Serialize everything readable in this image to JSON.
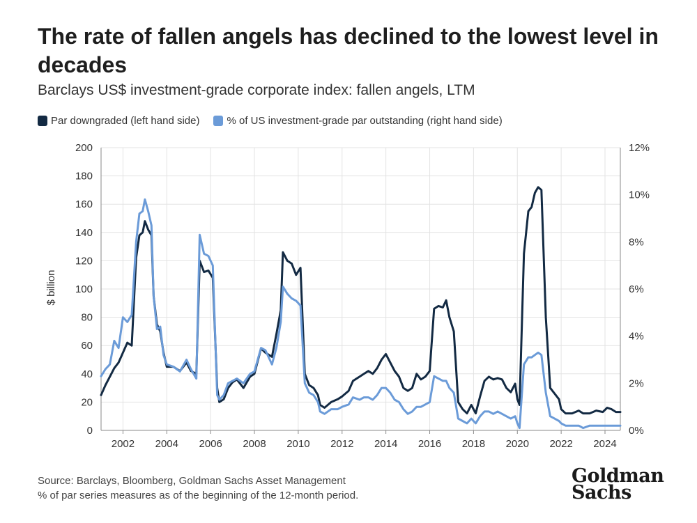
{
  "header": {
    "title": "The rate of fallen angels has declined to the lowest level in decades",
    "subtitle": "Barclays US$ investment-grade corporate index: fallen angels, LTM"
  },
  "footer": {
    "source": "Source: Barclays, Bloomberg, Goldman Sachs Asset Management",
    "note": "% of par series measures as of the beginning of the 12-month period.",
    "logo_line1": "Goldman",
    "logo_line2": "Sachs"
  },
  "colors": {
    "primary": "#132a43",
    "secondary": "#6b9bd8",
    "grid": "#e3e3e3",
    "axis": "#8a8a8a"
  },
  "chart_data": {
    "type": "line",
    "title": "The rate of fallen angels has declined to the lowest level in decades",
    "subtitle": "Barclays US$ investment-grade corporate index: fallen angels, LTM",
    "xlabel": "",
    "ylabel": "$ billion",
    "xlim": [
      2001.0,
      2024.7
    ],
    "ylim": [
      0,
      200
    ],
    "y2lim": [
      0,
      12
    ],
    "x_ticks": [
      2002,
      2004,
      2006,
      2008,
      2010,
      2012,
      2014,
      2016,
      2018,
      2020,
      2022,
      2024
    ],
    "y_ticks": [
      0,
      20,
      40,
      60,
      80,
      100,
      120,
      140,
      160,
      180,
      200
    ],
    "y2_ticks": [
      "0%",
      "2%",
      "4%",
      "6%",
      "8%",
      "10%",
      "12%"
    ],
    "grid": true,
    "legend_position": "top-left",
    "series": [
      {
        "name": "Par downgraded (left hand side)",
        "axis": "left",
        "unit": "$ billion",
        "points": [
          [
            2001.0,
            25
          ],
          [
            2001.2,
            32
          ],
          [
            2001.4,
            38
          ],
          [
            2001.6,
            44
          ],
          [
            2001.8,
            48
          ],
          [
            2002.0,
            55
          ],
          [
            2002.2,
            62
          ],
          [
            2002.4,
            60
          ],
          [
            2002.6,
            122
          ],
          [
            2002.75,
            138
          ],
          [
            2002.9,
            140
          ],
          [
            2003.0,
            148
          ],
          [
            2003.15,
            142
          ],
          [
            2003.3,
            138
          ],
          [
            2003.4,
            95
          ],
          [
            2003.55,
            75
          ],
          [
            2003.7,
            70
          ],
          [
            2003.85,
            55
          ],
          [
            2004.0,
            45
          ],
          [
            2004.3,
            45
          ],
          [
            2004.6,
            42
          ],
          [
            2004.9,
            48
          ],
          [
            2005.1,
            42
          ],
          [
            2005.35,
            40
          ],
          [
            2005.5,
            120
          ],
          [
            2005.7,
            112
          ],
          [
            2005.9,
            113
          ],
          [
            2006.1,
            108
          ],
          [
            2006.3,
            30
          ],
          [
            2006.4,
            20
          ],
          [
            2006.6,
            22
          ],
          [
            2006.8,
            30
          ],
          [
            2007.0,
            34
          ],
          [
            2007.2,
            36
          ],
          [
            2007.5,
            30
          ],
          [
            2007.8,
            38
          ],
          [
            2008.0,
            40
          ],
          [
            2008.3,
            58
          ],
          [
            2008.5,
            55
          ],
          [
            2008.8,
            52
          ],
          [
            2009.0,
            68
          ],
          [
            2009.2,
            85
          ],
          [
            2009.3,
            126
          ],
          [
            2009.5,
            120
          ],
          [
            2009.7,
            118
          ],
          [
            2009.9,
            110
          ],
          [
            2010.1,
            115
          ],
          [
            2010.3,
            40
          ],
          [
            2010.5,
            32
          ],
          [
            2010.7,
            30
          ],
          [
            2010.9,
            25
          ],
          [
            2011.0,
            18
          ],
          [
            2011.2,
            16
          ],
          [
            2011.5,
            20
          ],
          [
            2011.8,
            22
          ],
          [
            2012.0,
            24
          ],
          [
            2012.3,
            28
          ],
          [
            2012.5,
            35
          ],
          [
            2012.8,
            38
          ],
          [
            2013.0,
            40
          ],
          [
            2013.2,
            42
          ],
          [
            2013.4,
            40
          ],
          [
            2013.6,
            44
          ],
          [
            2013.8,
            50
          ],
          [
            2014.0,
            54
          ],
          [
            2014.2,
            48
          ],
          [
            2014.4,
            42
          ],
          [
            2014.6,
            38
          ],
          [
            2014.8,
            30
          ],
          [
            2015.0,
            28
          ],
          [
            2015.2,
            30
          ],
          [
            2015.4,
            40
          ],
          [
            2015.6,
            36
          ],
          [
            2015.8,
            38
          ],
          [
            2016.0,
            42
          ],
          [
            2016.2,
            86
          ],
          [
            2016.4,
            88
          ],
          [
            2016.6,
            87
          ],
          [
            2016.75,
            92
          ],
          [
            2016.9,
            80
          ],
          [
            2017.1,
            70
          ],
          [
            2017.3,
            20
          ],
          [
            2017.5,
            15
          ],
          [
            2017.7,
            12
          ],
          [
            2017.9,
            18
          ],
          [
            2018.1,
            12
          ],
          [
            2018.3,
            24
          ],
          [
            2018.5,
            35
          ],
          [
            2018.7,
            38
          ],
          [
            2018.9,
            36
          ],
          [
            2019.1,
            37
          ],
          [
            2019.3,
            36
          ],
          [
            2019.5,
            30
          ],
          [
            2019.7,
            27
          ],
          [
            2019.9,
            33
          ],
          [
            2020.0,
            22
          ],
          [
            2020.1,
            18
          ],
          [
            2020.3,
            125
          ],
          [
            2020.5,
            155
          ],
          [
            2020.65,
            158
          ],
          [
            2020.8,
            168
          ],
          [
            2020.95,
            172
          ],
          [
            2021.1,
            170
          ],
          [
            2021.3,
            80
          ],
          [
            2021.5,
            30
          ],
          [
            2021.7,
            26
          ],
          [
            2021.9,
            22
          ],
          [
            2022.0,
            15
          ],
          [
            2022.2,
            12
          ],
          [
            2022.5,
            12
          ],
          [
            2022.8,
            14
          ],
          [
            2023.0,
            12
          ],
          [
            2023.3,
            12
          ],
          [
            2023.6,
            14
          ],
          [
            2023.9,
            13
          ],
          [
            2024.1,
            16
          ],
          [
            2024.3,
            15
          ],
          [
            2024.5,
            13
          ],
          [
            2024.7,
            13
          ]
        ]
      },
      {
        "name": "% of US investment-grade par outstanding (right hand side)",
        "axis": "right",
        "unit": "%",
        "points": [
          [
            2001.0,
            2.3
          ],
          [
            2001.2,
            2.6
          ],
          [
            2001.4,
            2.8
          ],
          [
            2001.6,
            3.8
          ],
          [
            2001.8,
            3.5
          ],
          [
            2002.0,
            4.8
          ],
          [
            2002.2,
            4.6
          ],
          [
            2002.4,
            4.9
          ],
          [
            2002.6,
            8.0
          ],
          [
            2002.75,
            9.2
          ],
          [
            2002.9,
            9.3
          ],
          [
            2003.0,
            9.8
          ],
          [
            2003.15,
            9.3
          ],
          [
            2003.3,
            8.7
          ],
          [
            2003.4,
            5.7
          ],
          [
            2003.55,
            4.3
          ],
          [
            2003.7,
            4.4
          ],
          [
            2003.85,
            3.2
          ],
          [
            2004.0,
            2.8
          ],
          [
            2004.3,
            2.7
          ],
          [
            2004.6,
            2.5
          ],
          [
            2004.9,
            3.0
          ],
          [
            2005.1,
            2.6
          ],
          [
            2005.35,
            2.2
          ],
          [
            2005.5,
            8.3
          ],
          [
            2005.7,
            7.5
          ],
          [
            2005.9,
            7.4
          ],
          [
            2006.1,
            7.0
          ],
          [
            2006.3,
            1.5
          ],
          [
            2006.4,
            1.3
          ],
          [
            2006.6,
            1.5
          ],
          [
            2006.8,
            2.0
          ],
          [
            2007.0,
            2.1
          ],
          [
            2007.2,
            2.2
          ],
          [
            2007.5,
            2.0
          ],
          [
            2007.8,
            2.4
          ],
          [
            2008.0,
            2.5
          ],
          [
            2008.3,
            3.5
          ],
          [
            2008.5,
            3.4
          ],
          [
            2008.8,
            2.8
          ],
          [
            2009.0,
            3.5
          ],
          [
            2009.2,
            4.6
          ],
          [
            2009.3,
            6.1
          ],
          [
            2009.5,
            5.8
          ],
          [
            2009.7,
            5.6
          ],
          [
            2009.9,
            5.5
          ],
          [
            2010.1,
            5.3
          ],
          [
            2010.3,
            2.0
          ],
          [
            2010.5,
            1.6
          ],
          [
            2010.7,
            1.5
          ],
          [
            2010.9,
            1.2
          ],
          [
            2011.0,
            0.8
          ],
          [
            2011.2,
            0.7
          ],
          [
            2011.5,
            0.9
          ],
          [
            2011.8,
            0.9
          ],
          [
            2012.0,
            1.0
          ],
          [
            2012.3,
            1.1
          ],
          [
            2012.5,
            1.4
          ],
          [
            2012.8,
            1.3
          ],
          [
            2013.0,
            1.4
          ],
          [
            2013.2,
            1.4
          ],
          [
            2013.4,
            1.3
          ],
          [
            2013.6,
            1.5
          ],
          [
            2013.8,
            1.8
          ],
          [
            2014.0,
            1.8
          ],
          [
            2014.2,
            1.6
          ],
          [
            2014.4,
            1.3
          ],
          [
            2014.6,
            1.2
          ],
          [
            2014.8,
            0.9
          ],
          [
            2015.0,
            0.7
          ],
          [
            2015.2,
            0.8
          ],
          [
            2015.4,
            1.0
          ],
          [
            2015.6,
            1.0
          ],
          [
            2015.8,
            1.1
          ],
          [
            2016.0,
            1.2
          ],
          [
            2016.2,
            2.3
          ],
          [
            2016.4,
            2.2
          ],
          [
            2016.6,
            2.1
          ],
          [
            2016.75,
            2.1
          ],
          [
            2016.9,
            1.8
          ],
          [
            2017.1,
            1.6
          ],
          [
            2017.3,
            0.5
          ],
          [
            2017.5,
            0.4
          ],
          [
            2017.7,
            0.3
          ],
          [
            2017.9,
            0.5
          ],
          [
            2018.1,
            0.3
          ],
          [
            2018.3,
            0.6
          ],
          [
            2018.5,
            0.8
          ],
          [
            2018.7,
            0.8
          ],
          [
            2018.9,
            0.7
          ],
          [
            2019.1,
            0.8
          ],
          [
            2019.3,
            0.7
          ],
          [
            2019.5,
            0.6
          ],
          [
            2019.7,
            0.5
          ],
          [
            2019.9,
            0.6
          ],
          [
            2020.0,
            0.3
          ],
          [
            2020.1,
            0.1
          ],
          [
            2020.3,
            2.8
          ],
          [
            2020.5,
            3.1
          ],
          [
            2020.65,
            3.1
          ],
          [
            2020.8,
            3.2
          ],
          [
            2020.95,
            3.3
          ],
          [
            2021.1,
            3.2
          ],
          [
            2021.3,
            1.6
          ],
          [
            2021.5,
            0.6
          ],
          [
            2021.7,
            0.5
          ],
          [
            2021.9,
            0.4
          ],
          [
            2022.0,
            0.3
          ],
          [
            2022.2,
            0.2
          ],
          [
            2022.5,
            0.2
          ],
          [
            2022.8,
            0.2
          ],
          [
            2023.0,
            0.1
          ],
          [
            2023.3,
            0.2
          ],
          [
            2023.6,
            0.2
          ],
          [
            2023.9,
            0.2
          ],
          [
            2024.1,
            0.2
          ],
          [
            2024.3,
            0.2
          ],
          [
            2024.5,
            0.2
          ],
          [
            2024.7,
            0.2
          ]
        ]
      }
    ]
  }
}
